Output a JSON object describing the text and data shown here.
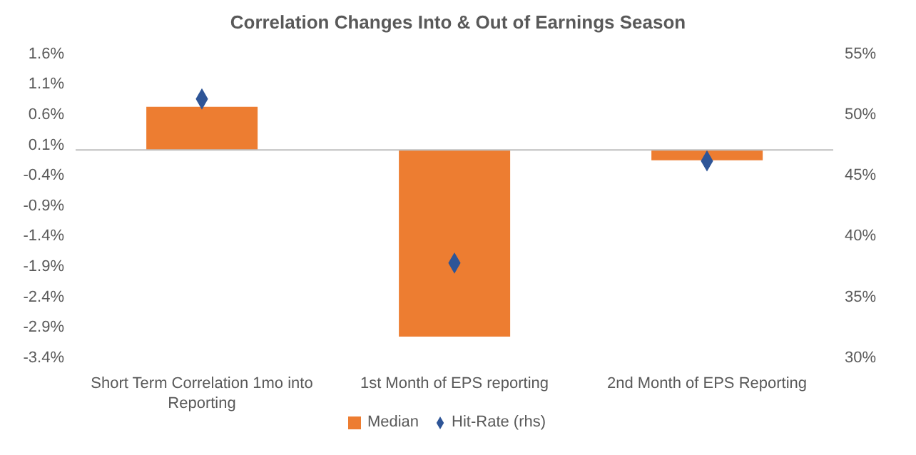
{
  "chart_data": {
    "type": "bar",
    "title": "Correlation Changes Into & Out of Earnings Season",
    "categories": [
      "Short Term Correlation 1mo into Reporting",
      "1st Month of EPS reporting",
      "2nd Month of EPS Reporting"
    ],
    "series": [
      {
        "name": "Median",
        "color": "#ed7d31",
        "values": [
          0.71,
          -3.07,
          -0.17
        ]
      },
      {
        "name": "Hit-Rate (rhs)",
        "type": "scatter",
        "axis": "y2",
        "color": "#2e5597",
        "values": [
          51.2,
          37.7,
          46.1
        ]
      }
    ],
    "ylim": [
      -3.4,
      1.6
    ],
    "yticks": [
      {
        "value": 1.6,
        "label": "1.6%"
      },
      {
        "value": 1.1,
        "label": "1.1%"
      },
      {
        "value": 0.6,
        "label": "0.6%"
      },
      {
        "value": 0.1,
        "label": "0.1%"
      },
      {
        "value": -0.4,
        "label": "-0.4%"
      },
      {
        "value": -0.9,
        "label": "-0.9%"
      },
      {
        "value": -1.4,
        "label": "-1.4%"
      },
      {
        "value": -1.9,
        "label": "-1.9%"
      },
      {
        "value": -2.4,
        "label": "-2.4%"
      },
      {
        "value": -2.9,
        "label": "-2.9%"
      },
      {
        "value": -3.4,
        "label": "-3.4%"
      }
    ],
    "y2lim": [
      30,
      55
    ],
    "y2ticks": [
      {
        "value": 30,
        "label": "30%"
      },
      {
        "value": 35,
        "label": "35%"
      },
      {
        "value": 40,
        "label": "40%"
      },
      {
        "value": 45,
        "label": "45%"
      },
      {
        "value": 50,
        "label": "50%"
      },
      {
        "value": 55,
        "label": "55%"
      }
    ],
    "marker": "diamond",
    "legend": "bottom"
  }
}
